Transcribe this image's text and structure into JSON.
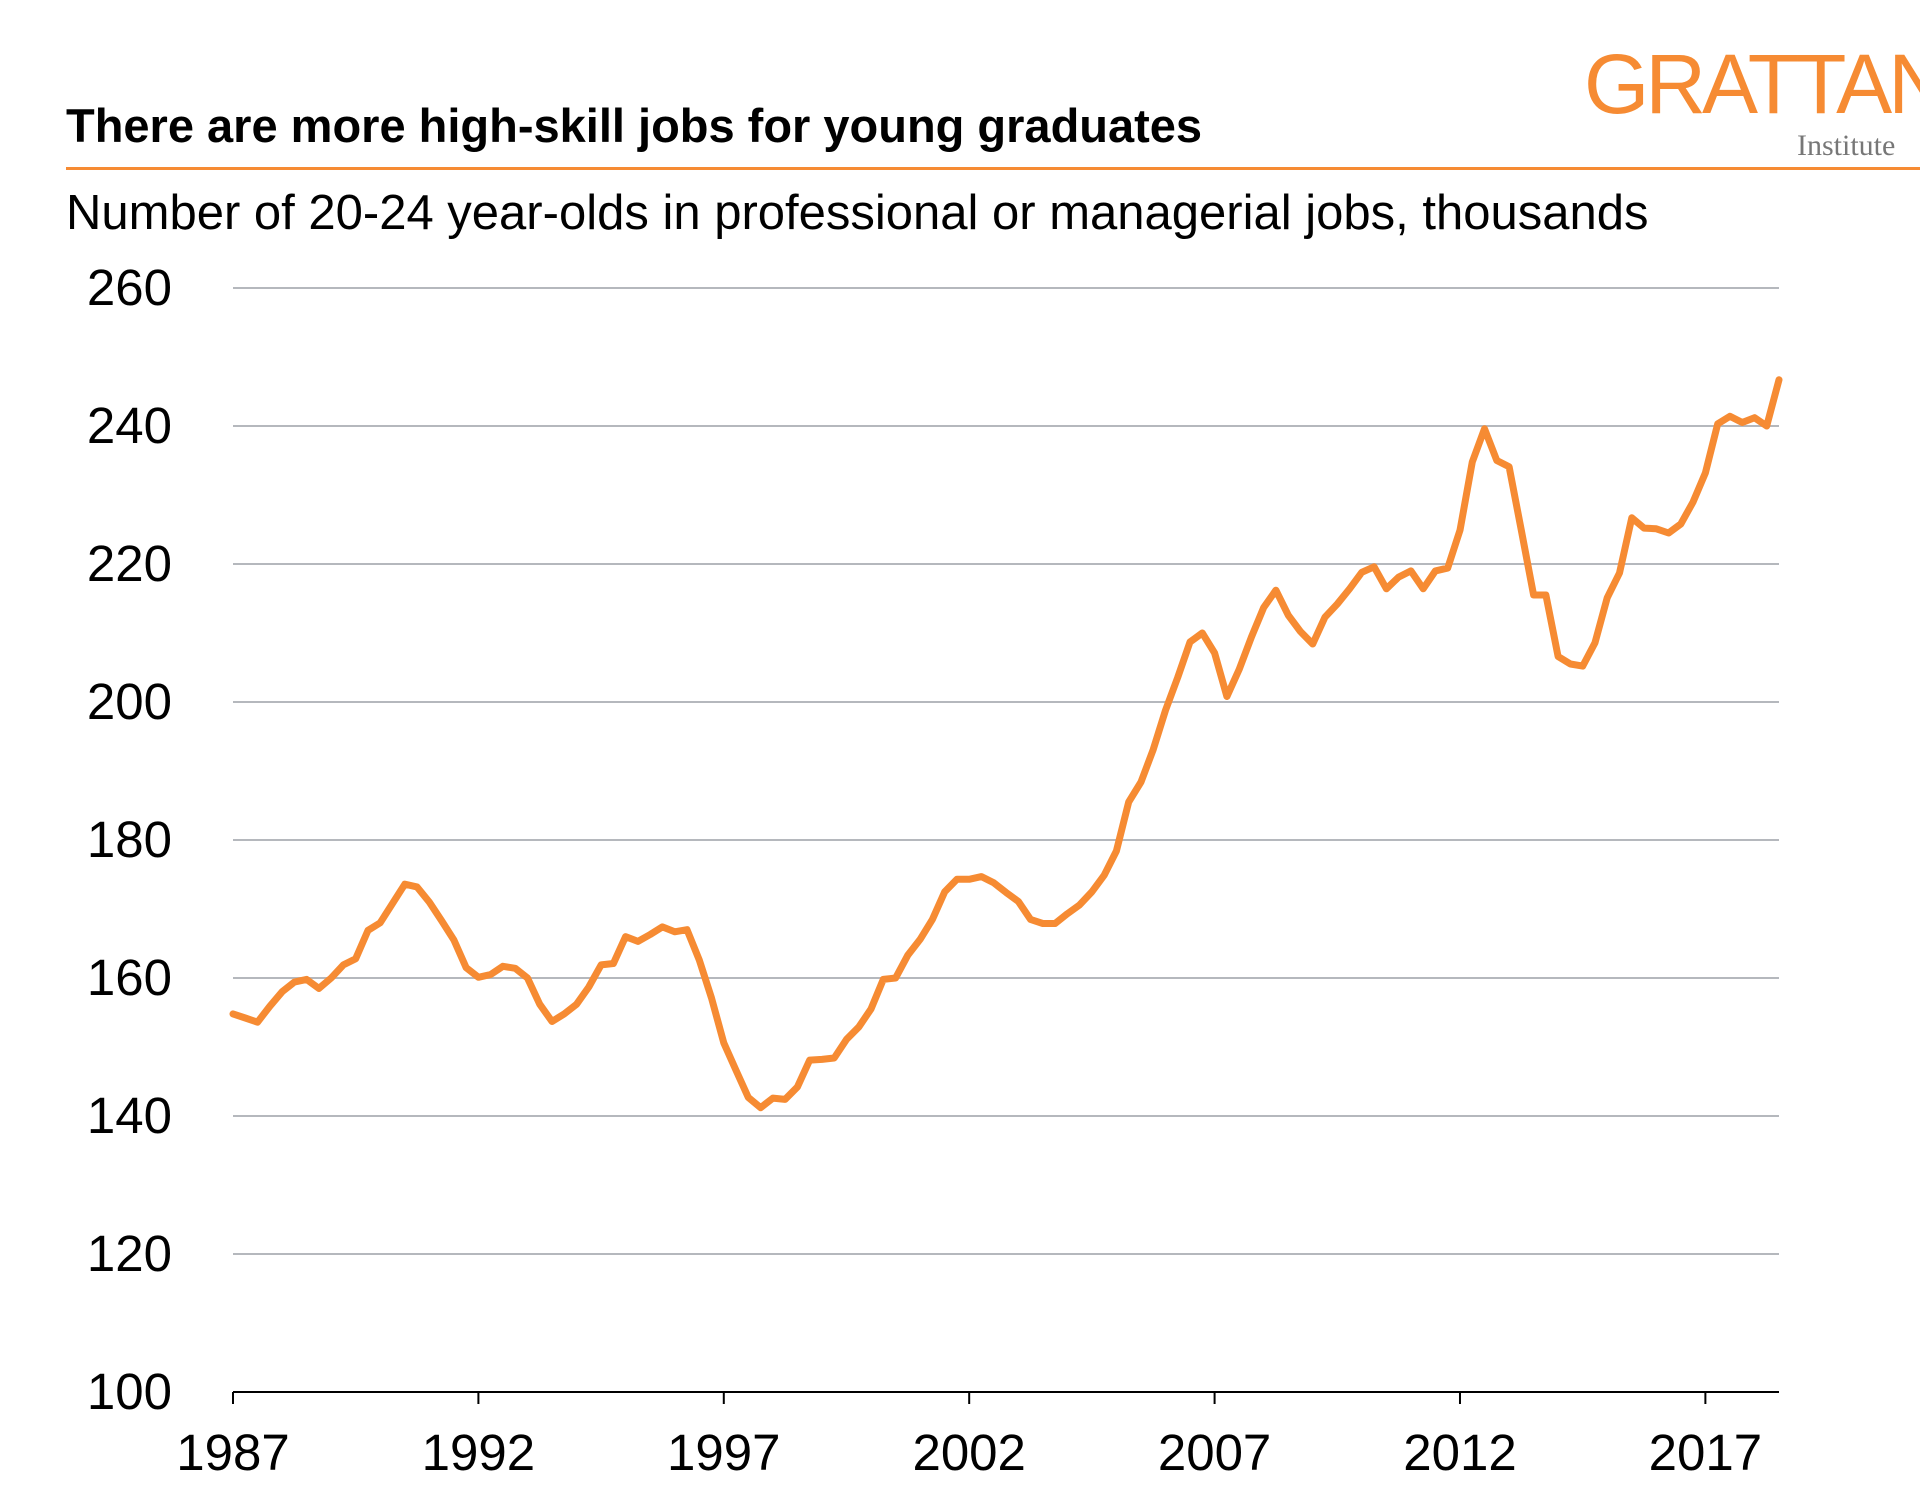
{
  "header": {
    "title": "There are more high-skill jobs for young graduates",
    "logo_main": "GRATTAN",
    "logo_sub": "Institute",
    "accent_color": "#F68B33"
  },
  "chart_data": {
    "type": "line",
    "title": "There are more high-skill jobs for young graduates",
    "subtitle": "Number of 20-24 year-olds in professional or managerial jobs, thousands",
    "xlabel": "",
    "ylabel": "",
    "xlim": [
      1987,
      2018.5
    ],
    "ylim": [
      100,
      260
    ],
    "x_ticks": [
      "1987",
      "1992",
      "1997",
      "2002",
      "2007",
      "2012",
      "2017"
    ],
    "y_ticks": [
      "100",
      "120",
      "140",
      "160",
      "180",
      "200",
      "220",
      "240",
      "260"
    ],
    "grid": "horizontal",
    "line_color": "#F68B33",
    "x_start": 1987,
    "x_step": 0.25,
    "series": [
      {
        "values": [
          154.8,
          154.2,
          153.6,
          155.9,
          158.0,
          159.4,
          159.8,
          158.5,
          160.0,
          161.9,
          162.8,
          166.9,
          168.0,
          170.8,
          173.6,
          173.2,
          171.0,
          168.3,
          165.5,
          161.5,
          160.1,
          160.5,
          161.7,
          161.4,
          160.0,
          156.2,
          153.7,
          154.8,
          156.2,
          158.7,
          161.9,
          162.1,
          166.0,
          165.3,
          166.3,
          167.4,
          166.7,
          167.0,
          162.6,
          157.1,
          150.6,
          146.6,
          142.7,
          141.2,
          142.6,
          142.4,
          144.2,
          148.1,
          148.2,
          148.4,
          151.1,
          152.9,
          155.5,
          159.8,
          160.0,
          163.3,
          165.6,
          168.5,
          172.5,
          174.3,
          174.3,
          174.7,
          173.8,
          172.4,
          171.1,
          168.5,
          167.9,
          167.9,
          169.3,
          170.6,
          172.5,
          174.9,
          178.4,
          185.5,
          188.4,
          193.1,
          198.8,
          203.6,
          208.7,
          210.0,
          207.1,
          200.8,
          204.7,
          209.4,
          213.7,
          216.2,
          212.6,
          210.2,
          208.4,
          212.3,
          214.2,
          216.4,
          218.8,
          219.6,
          216.4,
          218.1,
          219.0,
          216.4,
          219.0,
          219.4,
          224.9,
          234.8,
          239.6,
          235.0,
          234.1,
          224.9,
          215.5,
          215.5,
          206.6,
          205.5,
          205.2,
          208.6,
          215.1,
          218.7,
          226.7,
          225.2,
          225.1,
          224.5,
          225.8,
          229.0,
          233.2,
          240.3,
          241.4,
          240.5,
          241.2,
          240.0,
          246.7
        ]
      }
    ]
  }
}
